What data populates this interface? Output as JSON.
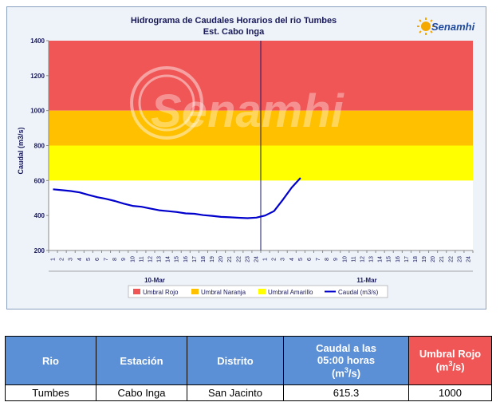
{
  "chart_data": {
    "type": "line",
    "title": "Hidrograma de Caudales Horarios del rio Tumbes",
    "subtitle": "Est. Cabo Inga",
    "ylabel": "Caudal  (m3/s)",
    "xlabel": "",
    "ylim": [
      200,
      1400
    ],
    "yticks": [
      200,
      400,
      600,
      800,
      1000,
      1200,
      1400
    ],
    "x_ticks": [
      "1",
      "2",
      "3",
      "4",
      "5",
      "6",
      "7",
      "8",
      "9",
      "10",
      "11",
      "12",
      "13",
      "14",
      "15",
      "16",
      "17",
      "18",
      "19",
      "20",
      "21",
      "22",
      "23",
      "24",
      "1",
      "2",
      "3",
      "4",
      "5",
      "6",
      "7",
      "8",
      "9",
      "10",
      "11",
      "12",
      "13",
      "14",
      "15",
      "16",
      "17",
      "18",
      "19",
      "20",
      "21",
      "22",
      "23",
      "24"
    ],
    "days": [
      "10-Mar",
      "11-Mar"
    ],
    "bands": [
      {
        "name": "Umbral Rojo",
        "from": 1000,
        "to": 1400,
        "color": "#f05656"
      },
      {
        "name": "Umbral Naranja",
        "from": 800,
        "to": 1000,
        "color": "#ffc000"
      },
      {
        "name": "Umbral Amarillo",
        "from": 600,
        "to": 800,
        "color": "#ffff00"
      }
    ],
    "series": [
      {
        "name": "Caudal (m3/s)",
        "color": "#0000cc",
        "values": [
          550,
          545,
          540,
          532,
          518,
          505,
          495,
          483,
          468,
          455,
          450,
          440,
          430,
          425,
          420,
          412,
          410,
          402,
          398,
          392,
          390,
          387,
          385,
          388,
          400,
          425,
          490,
          560,
          615.3
        ]
      }
    ],
    "legend_position": "bottom",
    "grid": false
  },
  "logo": {
    "text": "Senamhi"
  },
  "watermark": {
    "text": "Senamhi"
  },
  "legend": {
    "items": [
      {
        "label": "Umbral Rojo",
        "color": "#f05656",
        "kind": "box"
      },
      {
        "label": "Umbral Naranja",
        "color": "#ffc000",
        "kind": "box"
      },
      {
        "label": "Umbral Amarillo",
        "color": "#ffff00",
        "kind": "box"
      },
      {
        "label": "Caudal (m3/s)",
        "color": "#0000cc",
        "kind": "line"
      }
    ]
  },
  "table": {
    "headers": {
      "rio": "Rio",
      "estacion": "Estación",
      "distrito": "Distrito",
      "caudal_line1": "Caudal a las",
      "caudal_line2": "05:00 horas",
      "caudal_unit": "(m",
      "caudal_unit_sup": "3",
      "caudal_unit_end": "/s)",
      "umbral_line1": "Umbral Rojo",
      "umbral_unit": "(m",
      "umbral_unit_sup": "3",
      "umbral_unit_end": "/s)"
    },
    "row": {
      "rio": "Tumbes",
      "estacion": "Cabo Inga",
      "distrito": "San Jacinto",
      "caudal": "615.3",
      "umbral": "1000"
    }
  }
}
